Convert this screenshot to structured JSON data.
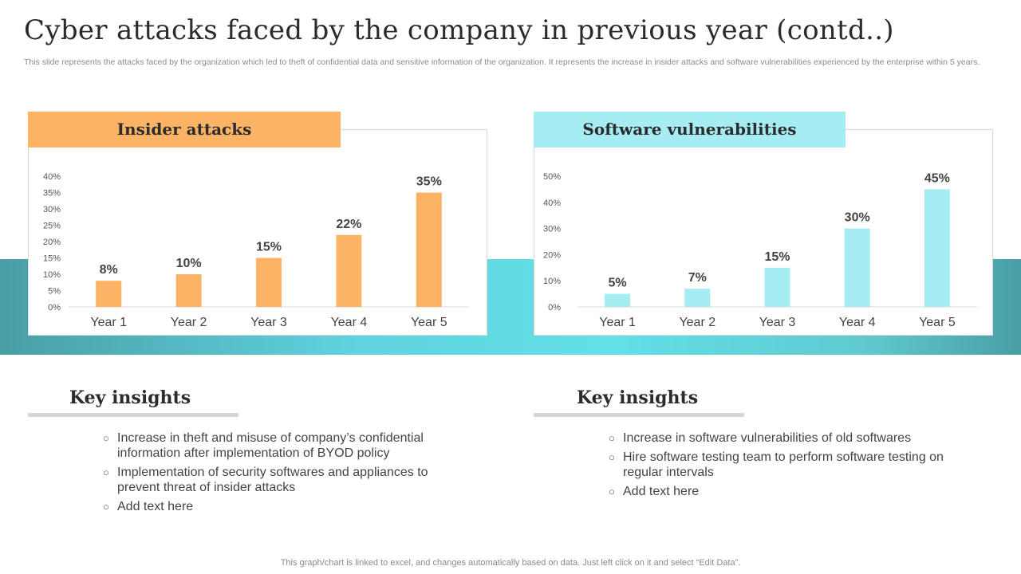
{
  "header": {
    "title": "Cyber attacks faced by the company in previous year (contd..)",
    "subtitle": "This slide represents the attacks faced by the organization which led to theft of confidential data and sensitive information of the organization. It represents the increase in insider attacks and software vulnerabilities experienced by the enterprise within 5 years."
  },
  "chart_data": [
    {
      "type": "bar",
      "title": "Insider attacks",
      "categories": [
        "Year 1",
        "Year 2",
        "Year 3",
        "Year 4",
        "Year 5"
      ],
      "values": [
        8,
        10,
        15,
        22,
        35
      ],
      "data_labels": [
        "8%",
        "10%",
        "15%",
        "22%",
        "35%"
      ],
      "y_ticks": [
        "0%",
        "5%",
        "10%",
        "15%",
        "20%",
        "25%",
        "30%",
        "35%",
        "40%"
      ],
      "ylim": [
        0,
        40
      ],
      "ytick_step": 5,
      "grid": false,
      "color": "#fdb366"
    },
    {
      "type": "bar",
      "title": "Software  vulnerabilities",
      "categories": [
        "Year 1",
        "Year 2",
        "Year 3",
        "Year 4",
        "Year 5"
      ],
      "values": [
        5,
        7,
        15,
        30,
        45
      ],
      "data_labels": [
        "5%",
        "7%",
        "15%",
        "30%",
        "45%"
      ],
      "y_ticks": [
        "0%",
        "10%",
        "20%",
        "30%",
        "40%",
        "50%"
      ],
      "ylim": [
        0,
        50
      ],
      "ytick_step": 10,
      "grid": false,
      "color": "#a6edf3"
    }
  ],
  "insights": [
    {
      "title": "Key insights",
      "bullet": "○",
      "items": [
        "Increase  in theft  and misuse of company’s confidential information after implementation of BYOD policy",
        "Implementation  of security softwares and appliances to prevent threat of insider attacks",
        "Add text here"
      ]
    },
    {
      "title": "Key insights",
      "bullet": "○",
      "items": [
        "Increase  in software vulnerabilities of old softwares",
        "Hire software testing team to perform software testing on regular intervals",
        "Add text here"
      ]
    }
  ],
  "footer": {
    "note": "This graph/chart is linked to excel,  and changes automatically based on data. Just left click on it and select “Edit Data”."
  }
}
